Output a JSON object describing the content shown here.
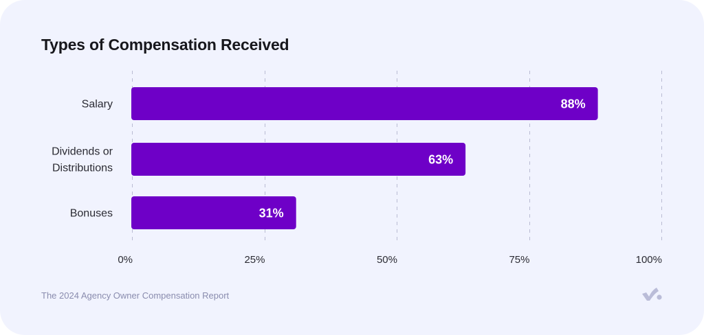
{
  "card": {
    "footer_text": "The 2024 Agency Owner Compensation Report",
    "logo_icon": "checkmark-dot-logo-icon"
  },
  "colors": {
    "background": "#f1f3fe",
    "bar": "#6e00c7",
    "bar_label": "#ffffff",
    "grid": "#b9bbd3",
    "text": "#2b2b33",
    "footer": "#8a8cae",
    "logo": "#babcd8"
  },
  "chart_data": {
    "type": "bar",
    "orientation": "horizontal",
    "title": "Types of Compensation Received",
    "categories": [
      "Salary",
      "Dividends or Distributions",
      "Bonuses"
    ],
    "category_lines": [
      [
        "Salary"
      ],
      [
        "Dividends or",
        "Distributions"
      ],
      [
        "Bonuses"
      ]
    ],
    "values": [
      88,
      63,
      31
    ],
    "data_labels": [
      "88%",
      "63%",
      "31%"
    ],
    "xlabel": "",
    "ylabel": "",
    "xlim": [
      0,
      100
    ],
    "xticks": [
      0,
      25,
      50,
      75,
      100
    ],
    "xtick_labels": [
      "0%",
      "25%",
      "50%",
      "75%",
      "100%"
    ],
    "grid": "vertical dashed",
    "legend": "none"
  }
}
